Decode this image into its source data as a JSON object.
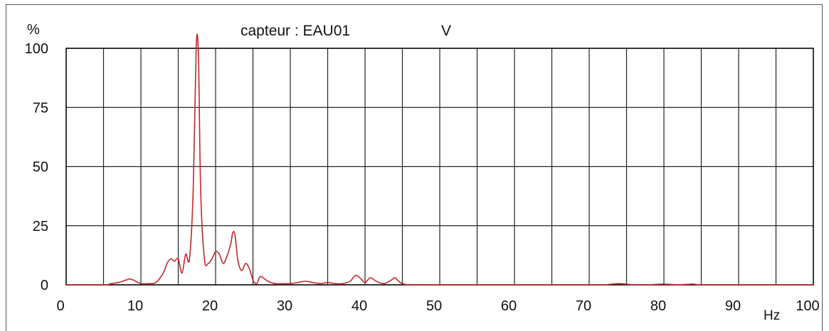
{
  "chart_data": {
    "type": "line",
    "title": "capteur  :  EAU01",
    "title_unit": "V",
    "ylabel": "%",
    "xlabel": "Hz",
    "xlim": [
      0,
      100
    ],
    "ylim": [
      0,
      100
    ],
    "xticks": [
      0,
      10,
      20,
      30,
      40,
      50,
      60,
      70,
      80,
      90,
      100
    ],
    "yticks": [
      0,
      25,
      50,
      75,
      100
    ],
    "grid_step_x": 5,
    "grid": true,
    "line_color": "#c0282a",
    "series": [
      {
        "name": "",
        "x": [
          0,
          5,
          6,
          7,
          8,
          8.5,
          9,
          10,
          11,
          12,
          13,
          13.5,
          14,
          14.5,
          15,
          15.5,
          16,
          16.5,
          17,
          17.4,
          17.7,
          18,
          18.5,
          19,
          19.5,
          20,
          20.5,
          21,
          21.5,
          22,
          22.3,
          22.6,
          23,
          23.5,
          24,
          24.5,
          25,
          25.5,
          26,
          27,
          28,
          29,
          30,
          31,
          32,
          33,
          34,
          35,
          36,
          37,
          38,
          38.7,
          39.3,
          40,
          40.7,
          41.5,
          42.5,
          43.5,
          44,
          44.5,
          45,
          46,
          50,
          60,
          70,
          72,
          73,
          74,
          75,
          76,
          78,
          79,
          80,
          82,
          83,
          84,
          85,
          90,
          100
        ],
        "y": [
          0,
          0,
          0.5,
          1,
          2,
          2.5,
          2,
          0.5,
          0.5,
          1,
          5,
          9,
          11,
          10,
          11,
          5,
          13,
          11,
          40,
          100,
          97,
          40,
          11,
          9,
          11,
          14,
          13,
          9,
          12,
          17,
          22,
          21,
          10,
          6,
          9,
          7,
          2,
          0.5,
          3.5,
          1.5,
          0.5,
          0.5,
          0.5,
          1,
          1.5,
          1,
          0.5,
          1,
          0.5,
          0.5,
          1.5,
          4,
          3,
          1,
          3,
          1.5,
          0.5,
          2,
          3,
          1.5,
          0.5,
          0,
          0,
          0,
          0,
          0,
          0.3,
          0.5,
          0.3,
          0,
          0,
          0.2,
          0.3,
          0,
          0.2,
          0.3,
          0,
          0,
          0
        ]
      }
    ]
  }
}
